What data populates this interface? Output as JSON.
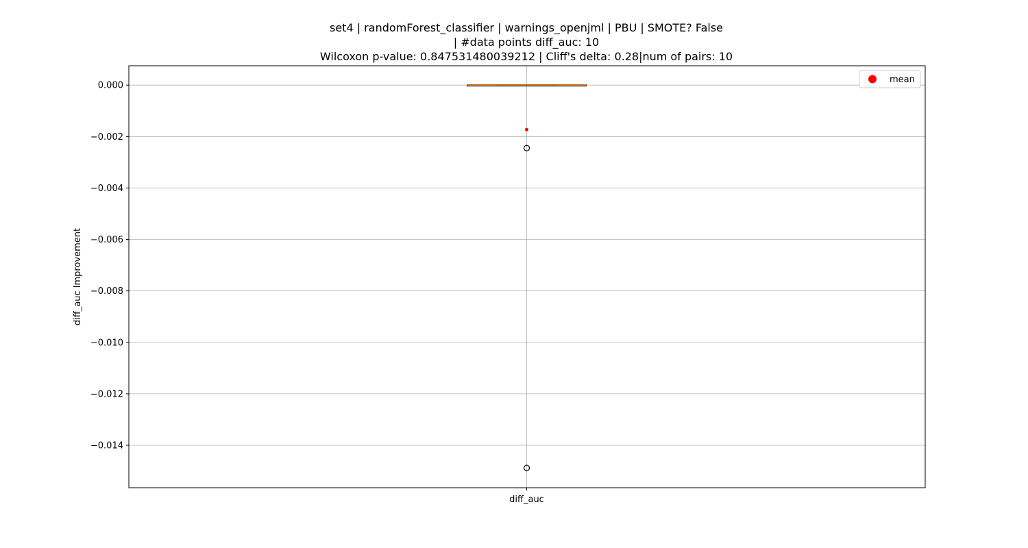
{
  "chart_data": {
    "type": "box",
    "title_lines": [
      "set4 | randomForest_classifier | warnings_openjml | PBU | SMOTE? False",
      "| #data points diff_auc: 10",
      "Wilcoxon p-value: 0.847531480039212 | Cliff's delta: 0.28|num of pairs: 10"
    ],
    "ylabel": "diff_auc Improvement",
    "xlabel": "",
    "categories": [
      "diff_auc"
    ],
    "ylim": [
      -0.01565,
      0.00075
    ],
    "yticks": [
      0.0,
      -0.002,
      -0.004,
      -0.006,
      -0.008,
      -0.01,
      -0.012,
      -0.014
    ],
    "ytick_labels": [
      "0.000",
      "−0.002",
      "−0.004",
      "−0.006",
      "−0.008",
      "−0.010",
      "−0.012",
      "−0.014"
    ],
    "grid": true,
    "box": {
      "q1": 0.0,
      "median": 0.0,
      "q3": 0.0,
      "whisker_low": 0.0,
      "whisker_high": 0.0,
      "mean": -0.00173,
      "outliers": [
        -0.00245,
        -0.01488
      ]
    },
    "legend": {
      "position": "top-right",
      "entries": [
        {
          "label": "mean",
          "marker": "circle"
        }
      ]
    },
    "colors": {
      "median": "#ff7f0e",
      "mean": "#ff0000",
      "grid": "#b0b0b0",
      "axes": "#000000"
    }
  }
}
